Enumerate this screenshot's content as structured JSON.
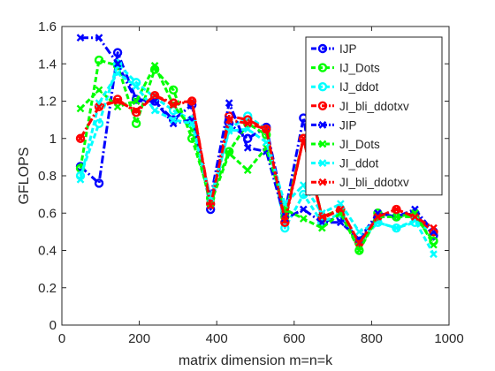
{
  "chart_data": {
    "type": "line",
    "title": "",
    "xlabel": "matrix dimension m=n=k",
    "ylabel": "GFLOPS",
    "xlim": [
      0,
      1000
    ],
    "ylim": [
      0,
      1.6
    ],
    "xticks": [
      0,
      200,
      400,
      600,
      800,
      1000
    ],
    "yticks": [
      0,
      0.2,
      0.4,
      0.6,
      0.8,
      1,
      1.2,
      1.4,
      1.6
    ],
    "grid": false,
    "legend_position": "top-right",
    "x": [
      48,
      96,
      144,
      192,
      240,
      288,
      336,
      384,
      432,
      480,
      528,
      576,
      624,
      672,
      720,
      768,
      816,
      864,
      912,
      960
    ],
    "series": [
      {
        "name": "IJP",
        "color": "#0000ff",
        "marker": "circle",
        "dash": "dash-dot",
        "values": [
          0.85,
          0.76,
          1.46,
          1.21,
          1.2,
          1.1,
          1.18,
          0.62,
          1.08,
          1.0,
          1.06,
          0.6,
          1.11,
          0.55,
          0.58,
          0.45,
          0.58,
          0.58,
          0.6,
          0.48
        ]
      },
      {
        "name": "IJ_Dots",
        "color": "#00ff00",
        "marker": "circle",
        "dash": "dashed",
        "values": [
          0.84,
          1.42,
          1.39,
          1.08,
          1.37,
          1.26,
          1.0,
          0.68,
          0.93,
          1.08,
          1.02,
          0.58,
          1.0,
          0.58,
          0.62,
          0.4,
          0.6,
          0.58,
          0.58,
          0.45
        ]
      },
      {
        "name": "IJ_ddot",
        "color": "#00ffff",
        "marker": "circle",
        "dash": "dashed",
        "values": [
          0.8,
          1.08,
          1.4,
          1.3,
          1.22,
          1.15,
          1.1,
          0.65,
          1.05,
          1.12,
          1.05,
          0.52,
          0.7,
          0.55,
          0.6,
          0.44,
          0.55,
          0.52,
          0.55,
          0.5
        ]
      },
      {
        "name": "JI_bli_ddotxv",
        "color": "#ff0000",
        "marker": "circle",
        "dash": "dash-dot",
        "values": [
          1.0,
          1.17,
          1.21,
          1.14,
          1.23,
          1.19,
          1.2,
          0.65,
          1.12,
          1.1,
          1.05,
          0.55,
          1.0,
          0.57,
          0.62,
          0.44,
          0.58,
          0.62,
          0.58,
          0.5
        ]
      },
      {
        "name": "JIP",
        "color": "#0000ff",
        "marker": "x",
        "dash": "dash-dot",
        "values": [
          1.54,
          1.54,
          1.4,
          1.2,
          1.2,
          1.08,
          1.1,
          0.68,
          1.19,
          0.95,
          0.93,
          0.57,
          0.62,
          0.55,
          0.55,
          0.46,
          0.6,
          0.58,
          0.62,
          0.5
        ]
      },
      {
        "name": "JI_Dots",
        "color": "#00ff00",
        "marker": "x",
        "dash": "dashed",
        "values": [
          1.16,
          1.26,
          1.17,
          1.2,
          1.39,
          1.18,
          1.05,
          0.65,
          0.92,
          0.83,
          0.95,
          0.62,
          0.57,
          0.52,
          0.6,
          0.4,
          0.58,
          0.58,
          0.6,
          0.43
        ]
      },
      {
        "name": "JI_ddot",
        "color": "#00ffff",
        "marker": "x",
        "dash": "dashed",
        "values": [
          0.78,
          1.19,
          1.35,
          1.28,
          1.15,
          1.1,
          1.08,
          0.68,
          1.04,
          1.05,
          0.98,
          0.65,
          0.75,
          0.6,
          0.65,
          0.5,
          0.55,
          0.52,
          0.56,
          0.38
        ]
      },
      {
        "name": "JI_bli_ddotxv",
        "color": "#ff0000",
        "marker": "x",
        "dash": "dash-dot",
        "values": [
          1.0,
          1.17,
          1.2,
          1.15,
          1.23,
          1.18,
          1.2,
          0.64,
          1.1,
          1.08,
          1.05,
          0.56,
          1.0,
          0.58,
          0.62,
          0.44,
          0.58,
          0.62,
          0.58,
          0.52
        ]
      }
    ]
  }
}
